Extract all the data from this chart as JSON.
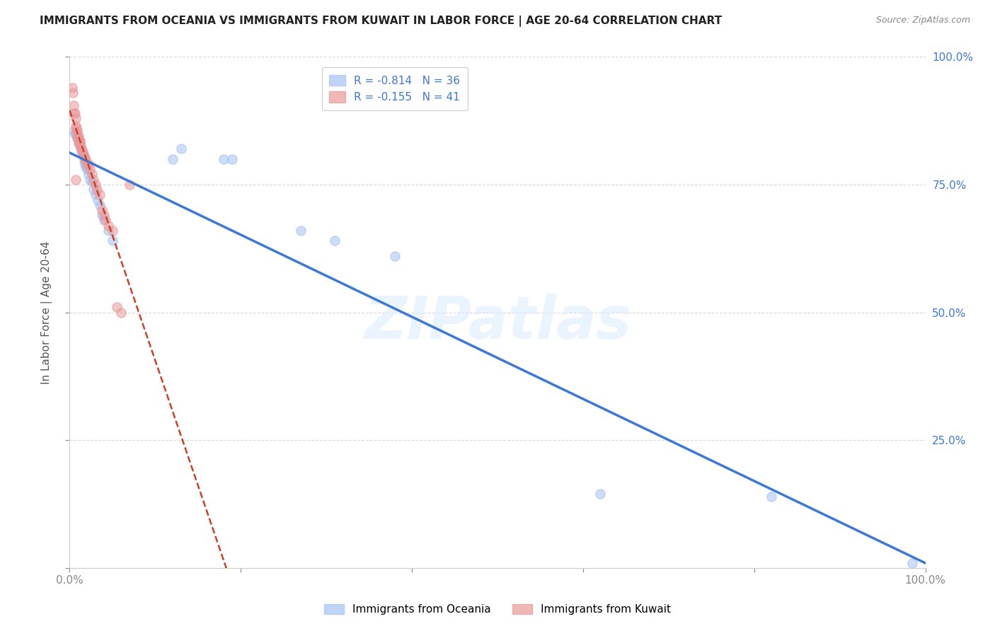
{
  "title": "IMMIGRANTS FROM OCEANIA VS IMMIGRANTS FROM KUWAIT IN LABOR FORCE | AGE 20-64 CORRELATION CHART",
  "source": "Source: ZipAtlas.com",
  "ylabel": "In Labor Force | Age 20-64",
  "xlim": [
    0.0,
    1.0
  ],
  "ylim": [
    0.0,
    1.0
  ],
  "oceania_color": "#a4c2f4",
  "kuwait_color": "#ea9999",
  "oceania_face_color": "#a4c2f4",
  "kuwait_face_color": "#ea9999",
  "oceania_line_color": "#3c78d8",
  "kuwait_line_color": "#cc4125",
  "R_oceania": -0.814,
  "N_oceania": 36,
  "R_kuwait": -0.155,
  "N_kuwait": 41,
  "legend_label_oceania": "Immigrants from Oceania",
  "legend_label_kuwait": "Immigrants from Kuwait",
  "watermark": "ZIPatlas",
  "oceania_x": [
    0.005,
    0.006,
    0.008,
    0.009,
    0.01,
    0.011,
    0.012,
    0.013,
    0.014,
    0.015,
    0.016,
    0.017,
    0.018,
    0.019,
    0.02,
    0.022,
    0.024,
    0.026,
    0.028,
    0.03,
    0.033,
    0.035,
    0.038,
    0.04,
    0.045,
    0.05,
    0.12,
    0.13,
    0.18,
    0.19,
    0.27,
    0.31,
    0.38,
    0.62,
    0.82,
    0.985
  ],
  "oceania_y": [
    0.855,
    0.85,
    0.845,
    0.84,
    0.84,
    0.835,
    0.83,
    0.82,
    0.815,
    0.81,
    0.805,
    0.795,
    0.79,
    0.785,
    0.78,
    0.77,
    0.76,
    0.755,
    0.74,
    0.73,
    0.72,
    0.71,
    0.69,
    0.68,
    0.66,
    0.64,
    0.8,
    0.82,
    0.8,
    0.8,
    0.66,
    0.64,
    0.61,
    0.145,
    0.14,
    0.01
  ],
  "kuwait_x": [
    0.003,
    0.004,
    0.005,
    0.005,
    0.006,
    0.007,
    0.007,
    0.008,
    0.008,
    0.009,
    0.009,
    0.01,
    0.01,
    0.011,
    0.012,
    0.012,
    0.013,
    0.014,
    0.015,
    0.016,
    0.017,
    0.018,
    0.019,
    0.02,
    0.022,
    0.024,
    0.026,
    0.028,
    0.03,
    0.032,
    0.035,
    0.038,
    0.04,
    0.042,
    0.045,
    0.05,
    0.055,
    0.06,
    0.007,
    0.07,
    0.01
  ],
  "kuwait_y": [
    0.94,
    0.93,
    0.905,
    0.89,
    0.89,
    0.88,
    0.865,
    0.86,
    0.855,
    0.855,
    0.845,
    0.845,
    0.84,
    0.835,
    0.835,
    0.83,
    0.825,
    0.82,
    0.815,
    0.81,
    0.805,
    0.8,
    0.8,
    0.79,
    0.79,
    0.78,
    0.77,
    0.76,
    0.75,
    0.74,
    0.73,
    0.7,
    0.69,
    0.68,
    0.67,
    0.66,
    0.51,
    0.5,
    0.76,
    0.75,
    0.83
  ],
  "background_color": "#ffffff",
  "grid_color": "#d9d9d9",
  "marker_size": 90,
  "marker_alpha": 0.55
}
